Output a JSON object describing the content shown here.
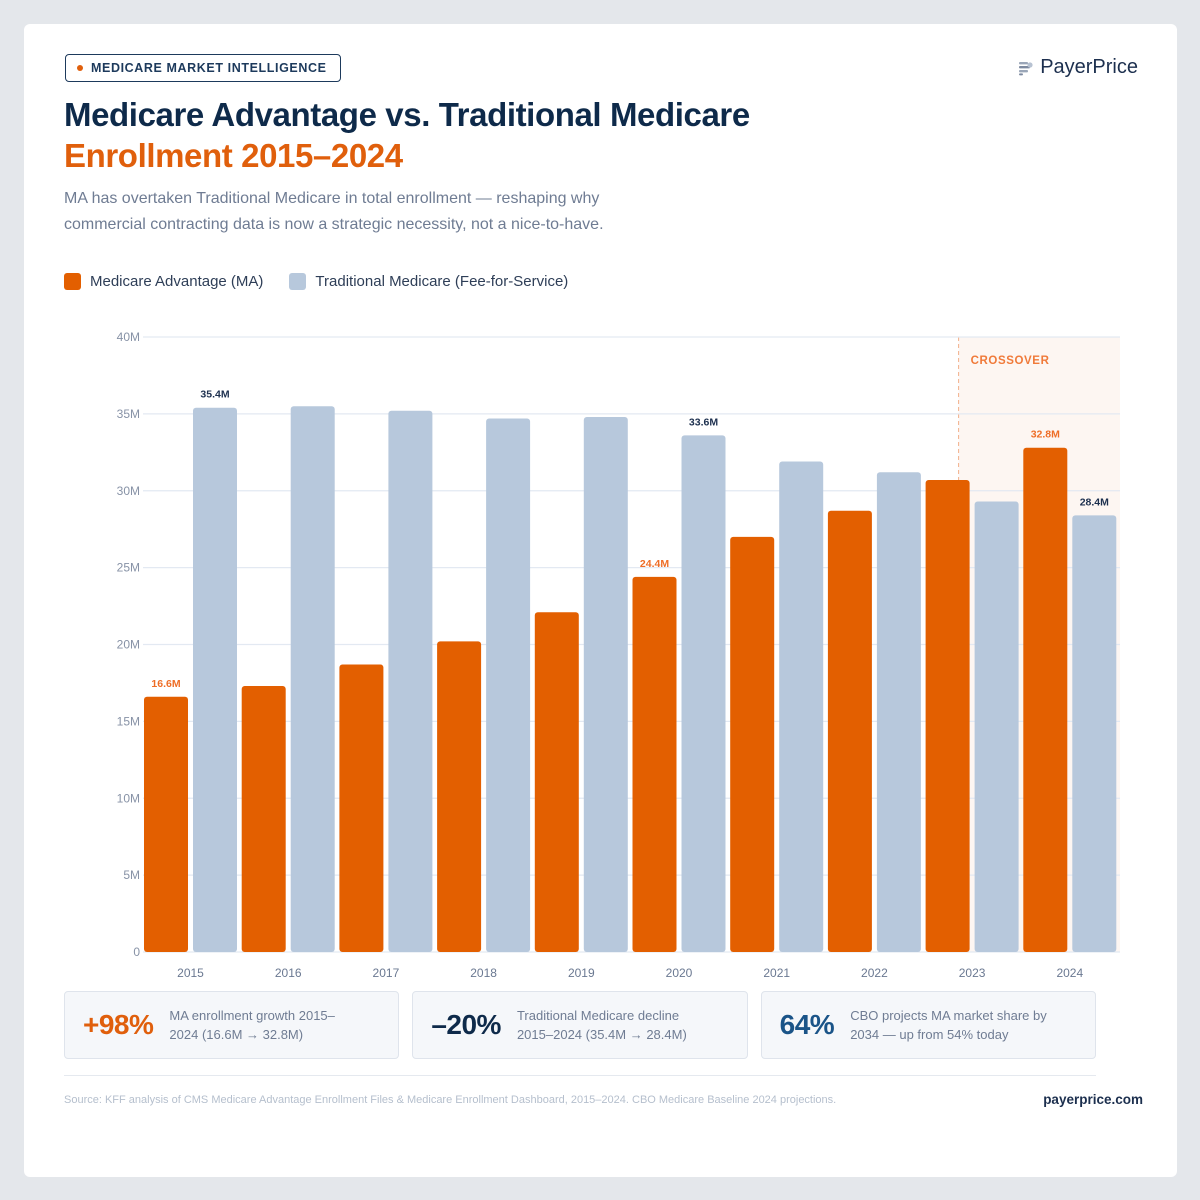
{
  "badge": {
    "label": "MEDICARE MARKET INTELLIGENCE"
  },
  "brand": {
    "name": "PayerPrice",
    "icon": "payerprice-logo-icon"
  },
  "header": {
    "title_line1": "Medicare Advantage vs. Traditional Medicare",
    "title_line2": "Enrollment 2015–2024",
    "subtitle": "MA has overtaken Traditional Medicare in total enrollment — reshaping why commercial contracting data is now a strategic necessity, not a nice-to-have."
  },
  "colors": {
    "ma": "#e35f00",
    "tm": "#b7c8dc",
    "navy": "#0e2a4a",
    "accent": "#e05f0c"
  },
  "chart_data": {
    "type": "bar",
    "title": "Medicare Advantage vs. Traditional Medicare Enrollment 2015–2024",
    "xlabel": "",
    "ylabel": "",
    "categories": [
      "2015",
      "2016",
      "2017",
      "2018",
      "2019",
      "2020",
      "2021",
      "2022",
      "2023",
      "2024"
    ],
    "series": [
      {
        "name": "Medicare Advantage (MA)",
        "color": "#e35f00",
        "values": [
          16.6,
          17.3,
          18.7,
          20.2,
          22.1,
          24.4,
          27.0,
          28.7,
          30.7,
          32.8
        ]
      },
      {
        "name": "Traditional Medicare (Fee-for-Service)",
        "color": "#b7c8dc",
        "values": [
          35.4,
          35.5,
          35.2,
          34.7,
          34.8,
          33.6,
          31.9,
          31.2,
          29.3,
          28.4
        ]
      }
    ],
    "unit": "M",
    "ylim": [
      0,
      40
    ],
    "yticks": [
      0,
      5,
      10,
      15,
      20,
      25,
      30,
      35,
      40
    ],
    "ytick_labels": [
      "0",
      "5M",
      "10M",
      "15M",
      "20M",
      "25M",
      "30M",
      "35M",
      "40M"
    ],
    "grid": true,
    "legend": "top-left",
    "data_labels": [
      {
        "series": 0,
        "index": 0,
        "text": "16.6M"
      },
      {
        "series": 1,
        "index": 0,
        "text": "35.4M"
      },
      {
        "series": 0,
        "index": 5,
        "text": "24.4M"
      },
      {
        "series": 1,
        "index": 5,
        "text": "33.6M"
      },
      {
        "series": 0,
        "index": 9,
        "text": "32.8M"
      },
      {
        "series": 1,
        "index": 9,
        "text": "28.4M"
      }
    ],
    "annotations": [
      {
        "text": "CROSSOVER",
        "from_category": "2023",
        "to_category": "2024",
        "type": "shaded-region"
      }
    ]
  },
  "stats": [
    {
      "value": "+98%",
      "desc": "MA enrollment growth 2015–2024 (16.6M → 32.8M)",
      "color": "#e05f0c"
    },
    {
      "value": "–20%",
      "desc": "Traditional Medicare decline 2015–2024 (35.4M → 28.4M)",
      "color": "#0e2a4a"
    },
    {
      "value": "64%",
      "desc": "CBO projects MA market share by 2034 — up from 54% today",
      "color": "#1a5488"
    }
  ],
  "footer": {
    "source": "Source: KFF analysis of CMS Medicare Advantage Enrollment Files & Medicare Enrollment Dashboard, 2015–2024. CBO Medicare Baseline 2024 projections.",
    "site": "payerprice.com"
  }
}
